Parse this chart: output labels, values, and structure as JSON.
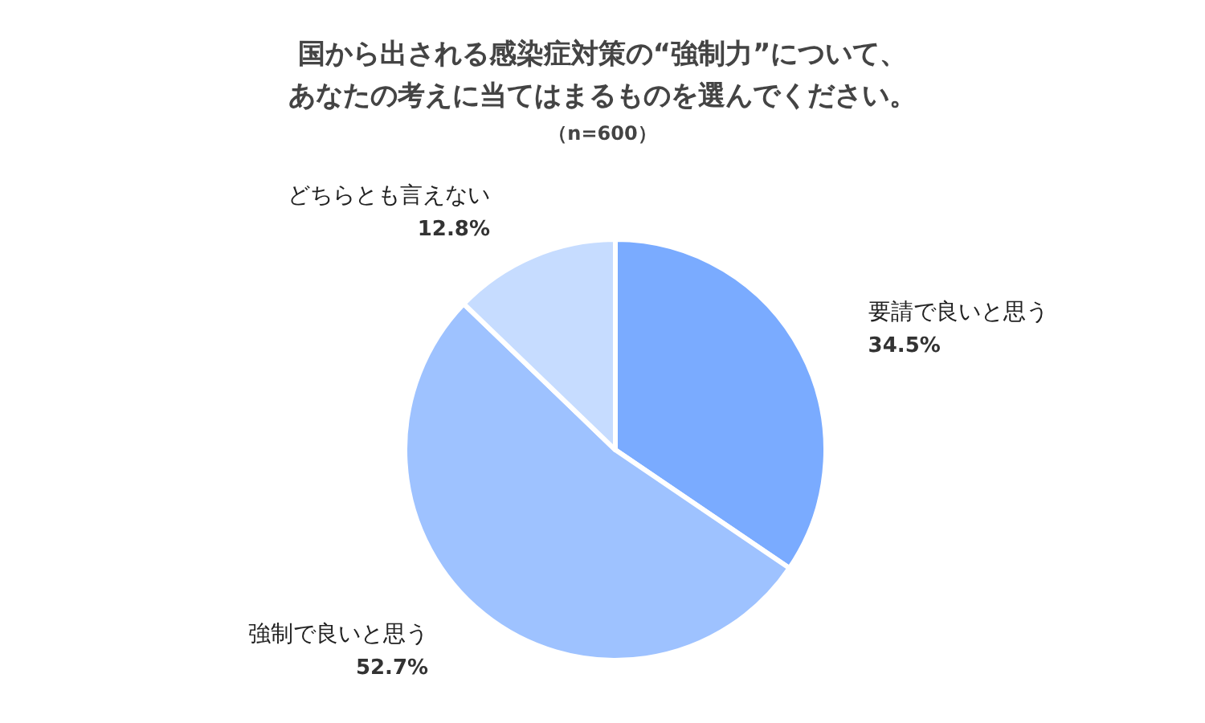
{
  "chart_data": {
    "type": "pie",
    "title": "国から出される感染症対策の“強制力”について、あなたの考えに当てはまるものを選んでください。",
    "subtitle": "（n=600）",
    "categories": [
      "要請で良いと思う",
      "強制で良いと思う",
      "どちらとも言えない"
    ],
    "values": [
      34.5,
      52.7,
      12.8
    ],
    "colors": [
      "#7aabff",
      "#9ec2ff",
      "#c6dcff"
    ],
    "value_labels": [
      "34.5%",
      "52.7%",
      "12.8%"
    ],
    "legend": false
  }
}
